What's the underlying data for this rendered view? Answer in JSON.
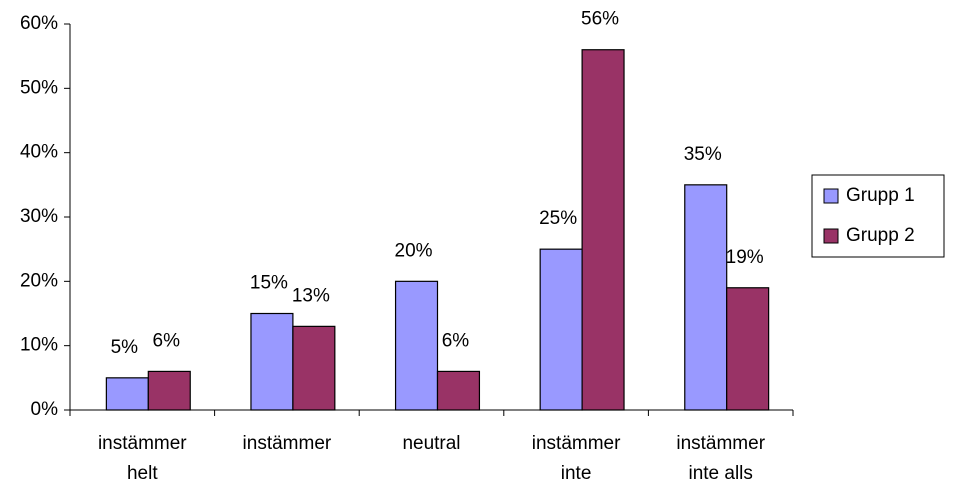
{
  "chart_data": {
    "type": "bar",
    "categories": [
      [
        "instämmer",
        "helt"
      ],
      [
        "instämmer"
      ],
      [
        "neutral"
      ],
      [
        "instämmer",
        "inte"
      ],
      [
        "instämmer",
        "inte alls"
      ]
    ],
    "series": [
      {
        "name": "Grupp 1",
        "color": "#9999ff",
        "values": [
          5,
          15,
          20,
          25,
          35
        ],
        "value_labels": [
          "5%",
          "15%",
          "20%",
          "25%",
          "35%"
        ]
      },
      {
        "name": "Grupp 2",
        "color": "#993366",
        "values": [
          6,
          13,
          6,
          56,
          19
        ],
        "value_labels": [
          "6%",
          "13%",
          "6%",
          "56%",
          "19%"
        ]
      }
    ],
    "ylim": [
      0,
      60
    ],
    "yticks": [
      {
        "value": 0,
        "label": "0%"
      },
      {
        "value": 10,
        "label": "10%"
      },
      {
        "value": 20,
        "label": "20%"
      },
      {
        "value": 30,
        "label": "30%"
      },
      {
        "value": 40,
        "label": "40%"
      },
      {
        "value": 50,
        "label": "50%"
      },
      {
        "value": 60,
        "label": "60%"
      }
    ],
    "legend": "right"
  }
}
